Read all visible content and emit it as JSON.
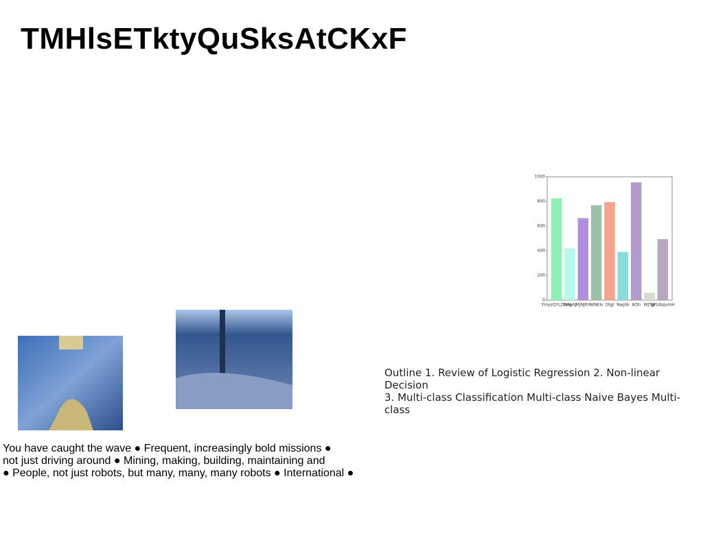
{
  "header": {
    "title": "TMHlsETktyQuSksAtCKxF"
  },
  "body_text": {
    "lines": [
      "You have caught the wave ● Frequent, increasingly bold missions ●",
      "not just driving around ● Mining, making, building, maintaining and",
      "● People, not just robots, but many, many, many robots ● International ●"
    ]
  },
  "side_text": {
    "lines": [
      "Outline 1. Review of Logistic Regression 2. Non-linear Decision",
      "3. Multi-class Classification Multi-class Naive Bayes Multi-class"
    ]
  },
  "chart_data": {
    "type": "bar",
    "categories": [
      "YmyzQYLZGng",
      "WFoAJ",
      "MjNJRX",
      "WNEIs",
      "Otgt",
      "NwjIib",
      "AOti",
      "WJTlp",
      "gPUAsjumH"
    ],
    "values": [
      825,
      420,
      665,
      770,
      795,
      390,
      955,
      60,
      495
    ],
    "colors": [
      "#8ef0b4",
      "#b8f7ec",
      "#b28ee0",
      "#9cc0a8",
      "#f2a48c",
      "#86dcd6",
      "#b29acb",
      "#d8d8d4",
      "#b8a6be"
    ],
    "ylim": [
      0,
      1000
    ],
    "yticks": [
      0,
      200,
      400,
      600,
      800,
      1000
    ]
  }
}
